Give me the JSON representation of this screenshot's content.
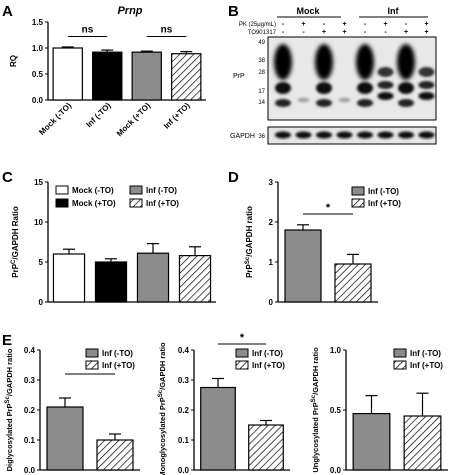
{
  "panel_letters": [
    "A",
    "B",
    "C",
    "D",
    "E"
  ],
  "blot": {
    "header_mock": "Mock",
    "header_inf": "Inf",
    "row_pk": "PK (25μg/mL)",
    "row_to": "TO901317",
    "pk_signs": [
      "-",
      "+",
      "-",
      "+",
      "-",
      "+",
      "-",
      "+"
    ],
    "to_signs": [
      "-",
      "-",
      "+",
      "+",
      "-",
      "-",
      "+",
      "+"
    ],
    "mw_prp": [
      "49",
      "38",
      "28",
      "17",
      "14"
    ],
    "mw_gapdh": [
      "36"
    ],
    "label_prp": "PrP",
    "label_gapdh": "GAPDH"
  },
  "chart_data": [
    {
      "panel": "A",
      "type": "bar",
      "title": "Prnp",
      "xlabel": "",
      "ylabel": "RQ",
      "ylim": [
        0,
        1.5
      ],
      "yticks": [
        "0.0",
        "0.5",
        "1.0",
        "1.5"
      ],
      "categories": [
        "Mock (-TO)",
        "Inf (-TO)",
        "Mock (+TO)",
        "Inf (+TO)"
      ],
      "values": [
        1.0,
        0.92,
        0.92,
        0.89
      ],
      "errors": [
        0.02,
        0.04,
        0.02,
        0.04
      ],
      "annotations": [
        "ns",
        "ns"
      ]
    },
    {
      "panel": "C",
      "type": "bar",
      "xlabel": "",
      "ylabel": "PrPC/GAPDH Ratio",
      "ylim": [
        0,
        15
      ],
      "yticks": [
        "0",
        "5",
        "10",
        "15"
      ],
      "categories": [
        "Mock (-TO)",
        "Mock (+TO)",
        "Inf (-TO)",
        "Inf (+TO)"
      ],
      "values": [
        6.0,
        5.0,
        6.1,
        5.8
      ],
      "errors": [
        0.6,
        0.4,
        1.2,
        1.1
      ],
      "legend": [
        "Mock (-TO)",
        "Inf (-TO)",
        "Mock (+TO)",
        "Inf (+TO)"
      ],
      "legend_placement": "top"
    },
    {
      "panel": "D",
      "type": "bar",
      "xlabel": "",
      "ylabel": "PrPSc/GAPDH ratio",
      "ylim": [
        0,
        3
      ],
      "yticks": [
        "0",
        "1",
        "2",
        "3"
      ],
      "categories": [
        "Inf (-TO)",
        "Inf (+TO)"
      ],
      "values": [
        1.8,
        0.95
      ],
      "errors": [
        0.13,
        0.24
      ],
      "legend": [
        "Inf (-TO)",
        "Inf (+TO)"
      ],
      "legend_placement": "top-right",
      "annotations": [
        "*"
      ]
    },
    {
      "panel": "E",
      "type": "bar",
      "xlabel": "",
      "ylabel": "Diglycosylated PrPSc/GAPDH ratio",
      "ylim": [
        0,
        0.4
      ],
      "yticks": [
        "0.0",
        "0.1",
        "0.2",
        "0.3",
        "0.4"
      ],
      "categories": [
        "Inf (-TO)",
        "Inf (+TO)"
      ],
      "values": [
        0.21,
        0.1
      ],
      "errors": [
        0.03,
        0.02
      ],
      "legend": [
        "Inf (-TO)",
        "Inf (+TO)"
      ],
      "legend_placement": "top-right",
      "annotations": [
        "*"
      ]
    },
    {
      "type": "bar",
      "xlabel": "",
      "ylabel": "Monoglycosylated PrPSc/GAPDH ratio",
      "ylim": [
        0,
        0.4
      ],
      "yticks": [
        "0.0",
        "0.1",
        "0.2",
        "0.3",
        "0.4"
      ],
      "categories": [
        "Inf (-TO)",
        "Inf (+TO)"
      ],
      "values": [
        0.275,
        0.15
      ],
      "errors": [
        0.03,
        0.015
      ],
      "legend": [
        "Inf (-TO)",
        "Inf (+TO)"
      ],
      "legend_placement": "top-right",
      "annotations": [
        "*"
      ]
    },
    {
      "type": "bar",
      "xlabel": "",
      "ylabel": "Unglycosylated PrPSc/GAPDH ratio",
      "ylim": [
        0,
        1.0
      ],
      "yticks": [
        "0.0",
        "0.5",
        "1.0"
      ],
      "categories": [
        "Inf (-TO)",
        "Inf (+TO)"
      ],
      "values": [
        0.47,
        0.45
      ],
      "errors": [
        0.15,
        0.19
      ],
      "legend": [
        "Inf (-TO)",
        "Inf (+TO)"
      ],
      "legend_placement": "top-right"
    }
  ],
  "colors": {
    "white": "#ffffff",
    "black": "#000000",
    "gray": "#8c8c8c",
    "hatch": "#000000"
  }
}
